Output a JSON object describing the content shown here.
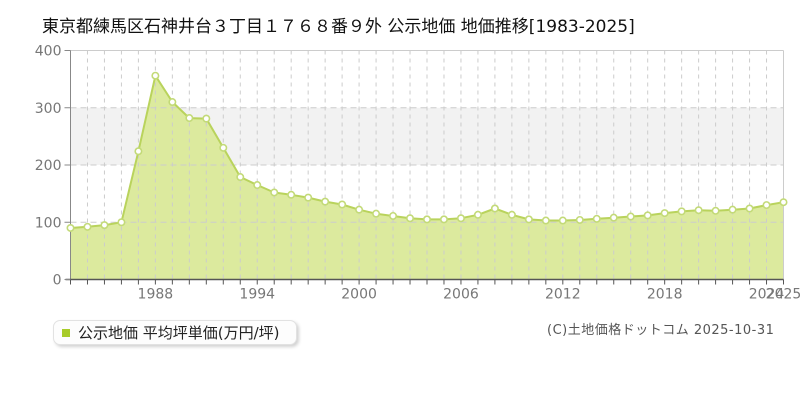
{
  "legend": {
    "label": "公示地価 平均坪単価(万円/坪)",
    "swatch_color": "#a8cc29"
  },
  "footer": {
    "copyright": "(C)土地価格ドットコム 2025-10-31"
  },
  "chart_data": {
    "type": "area",
    "title": "東京都練馬区石神井台３丁目１７６８番９外 公示地価 地価推移[1983-2025]",
    "series_name": "公示地価 平均坪単価(万円/坪)",
    "xlabel": "",
    "ylabel": "平均坪単価(万円/坪)",
    "x": [
      1983,
      1984,
      1985,
      1986,
      1987,
      1988,
      1989,
      1990,
      1991,
      1992,
      1993,
      1994,
      1995,
      1996,
      1997,
      1998,
      1999,
      2000,
      2001,
      2002,
      2003,
      2004,
      2005,
      2006,
      2007,
      2008,
      2009,
      2010,
      2011,
      2012,
      2013,
      2014,
      2015,
      2016,
      2017,
      2018,
      2019,
      2020,
      2021,
      2022,
      2023,
      2024,
      2025
    ],
    "values": [
      90,
      92,
      95,
      100,
      224,
      356,
      310,
      282,
      281,
      230,
      179,
      165,
      152,
      148,
      143,
      136,
      131,
      122,
      115,
      111,
      107,
      105,
      105,
      107,
      113,
      124,
      113,
      105,
      103,
      103,
      104,
      106,
      108,
      110,
      112,
      116,
      119,
      121,
      120,
      122,
      124,
      130,
      135
    ],
    "ylim": [
      0,
      400
    ],
    "y_ticks": [
      0,
      100,
      200,
      300,
      400
    ],
    "x_tick_labels": [
      1988,
      1994,
      2000,
      2006,
      2012,
      2018,
      2024,
      2025
    ],
    "grid": true,
    "legend_position": "bottom-left",
    "colors": {
      "area_fill": "#dcea9e",
      "line": "#b9d35c",
      "marker_fill": "#ffffff",
      "marker_stroke": "#c3da78",
      "band_200_300": "#f2f2f2",
      "grid": "#cccccc",
      "y_axis": "#888888",
      "x_axis": "#555555",
      "tick_text": "#777777"
    }
  }
}
